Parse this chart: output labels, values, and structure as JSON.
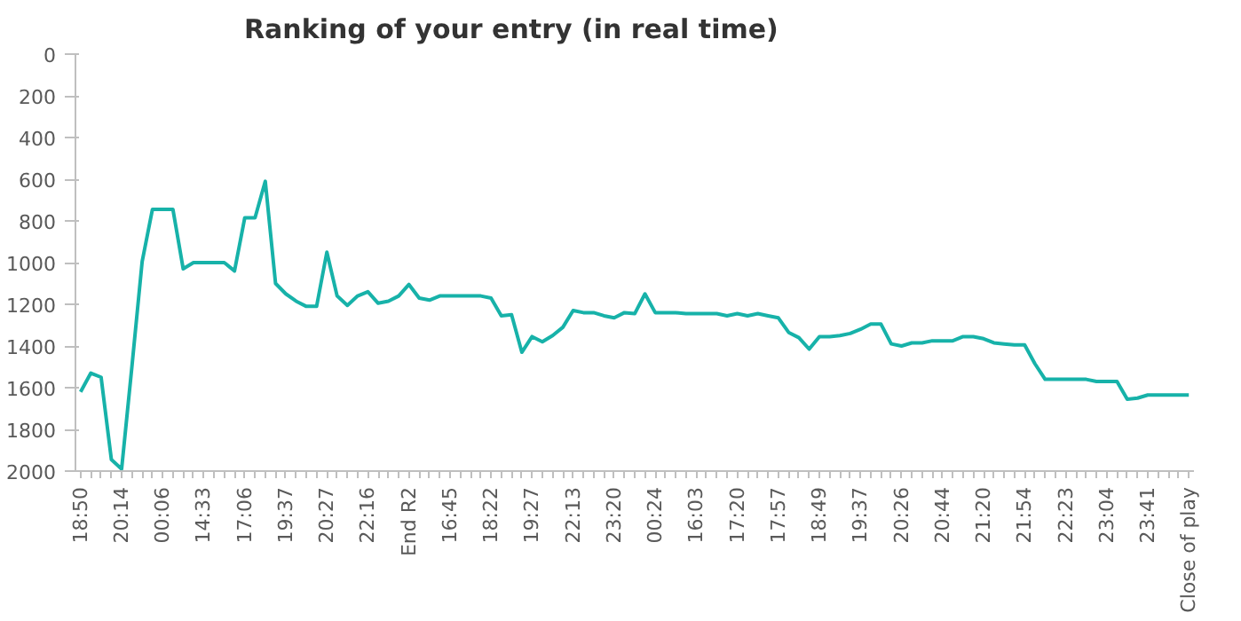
{
  "chart_data": {
    "type": "line",
    "title": "Ranking of your entry (in real time)",
    "categories": [
      "18:50",
      null,
      null,
      null,
      "20:14",
      null,
      null,
      null,
      "00:06",
      null,
      null,
      null,
      "14:33",
      null,
      null,
      null,
      "17:06",
      null,
      null,
      null,
      "19:37",
      null,
      null,
      null,
      "20:27",
      null,
      null,
      null,
      "22:16",
      null,
      null,
      null,
      "End R2",
      null,
      null,
      null,
      "16:45",
      null,
      null,
      null,
      "18:22",
      null,
      null,
      null,
      "19:27",
      null,
      null,
      null,
      "22:13",
      null,
      null,
      null,
      "23:20",
      null,
      null,
      null,
      "00:24",
      null,
      null,
      null,
      "16:03",
      null,
      null,
      null,
      "17:20",
      null,
      null,
      null,
      "17:57",
      null,
      null,
      null,
      "18:49",
      null,
      null,
      null,
      "19:37",
      null,
      null,
      null,
      "20:26",
      null,
      null,
      null,
      "20:44",
      null,
      null,
      null,
      "21:20",
      null,
      null,
      null,
      "21:54",
      null,
      null,
      null,
      "22:23",
      null,
      null,
      null,
      "23:04",
      null,
      null,
      null,
      "23:41",
      null,
      null,
      null,
      "Close of play"
    ],
    "series": [
      {
        "color": "#17b2a9",
        "values": [
          1620,
          1530,
          1550,
          1945,
          1990,
          1500,
          995,
          745,
          745,
          745,
          1030,
          1000,
          1000,
          1000,
          1000,
          1040,
          785,
          785,
          610,
          1100,
          1150,
          1185,
          1210,
          1210,
          950,
          1160,
          1205,
          1160,
          1140,
          1195,
          1185,
          1160,
          1105,
          1170,
          1180,
          1160,
          1160,
          1160,
          1160,
          1160,
          1170,
          1255,
          1250,
          1430,
          1355,
          1380,
          1350,
          1310,
          1230,
          1240,
          1240,
          1255,
          1265,
          1240,
          1245,
          1150,
          1240,
          1240,
          1240,
          1245,
          1245,
          1245,
          1245,
          1255,
          1245,
          1255,
          1245,
          1255,
          1265,
          1335,
          1360,
          1415,
          1355,
          1355,
          1350,
          1340,
          1320,
          1295,
          1295,
          1390,
          1400,
          1385,
          1385,
          1375,
          1375,
          1375,
          1355,
          1355,
          1365,
          1385,
          1390,
          1395,
          1395,
          1485,
          1560,
          1560,
          1560,
          1560,
          1560,
          1570,
          1570,
          1570,
          1655,
          1650,
          1635,
          1635,
          1635,
          1635,
          1635
        ]
      }
    ],
    "ylim": [
      2000,
      0
    ],
    "yticks": [
      0,
      200,
      400,
      600,
      800,
      1000,
      1200,
      1400,
      1600,
      1800,
      2000
    ],
    "grid": false,
    "marker": "none",
    "line_style": "solid"
  }
}
